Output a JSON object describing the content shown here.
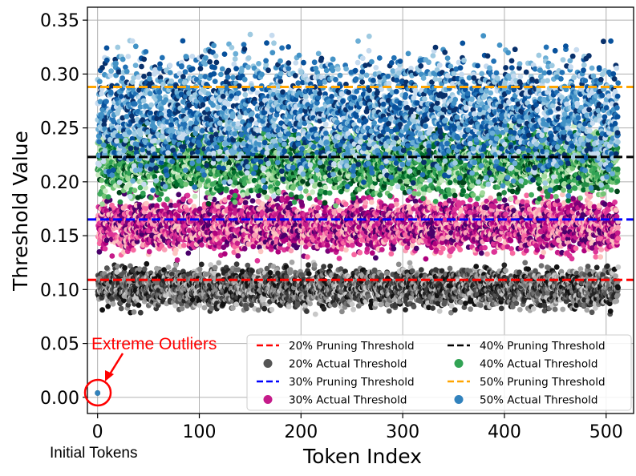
{
  "chart_data": {
    "type": "scatter",
    "xlabel": "Token Index",
    "ylabel": "Threshold Value",
    "xlim": [
      -10,
      527
    ],
    "ylim": [
      -0.015,
      0.362
    ],
    "xticks": [
      0,
      100,
      200,
      300,
      400,
      500
    ],
    "yticks": [
      0.0,
      0.05,
      0.1,
      0.15,
      0.2,
      0.25,
      0.3,
      0.35
    ],
    "ytick_labels": [
      "0.00",
      "0.05",
      "0.10",
      "0.15",
      "0.20",
      "0.25",
      "0.30",
      "0.35"
    ],
    "grid": true,
    "legend_position": "lower-right",
    "token_range": [
      0,
      511
    ],
    "pruning_thresholds": [
      {
        "name": "20% Pruning Threshold",
        "value": 0.109,
        "color": "#ff0000"
      },
      {
        "name": "30% Pruning Threshold",
        "value": 0.165,
        "color": "#0000ff"
      },
      {
        "name": "40% Pruning Threshold",
        "value": 0.223,
        "color": "#000000"
      },
      {
        "name": "50% Pruning Threshold",
        "value": 0.288,
        "color": "#ffa500"
      }
    ],
    "actual_thresholds": [
      {
        "name": "20% Actual Threshold",
        "legend_color": "#555555",
        "range": [
          0.075,
          0.128
        ],
        "colors": [
          "#111111",
          "#252525",
          "#3a3a3a",
          "#555555",
          "#707070",
          "#8a8a8a",
          "#a5a5a5",
          "#c8c8c8"
        ]
      },
      {
        "name": "30% Actual Threshold",
        "legend_color": "#c51b8a",
        "range": [
          0.125,
          0.195
        ],
        "colors": [
          "#49006a",
          "#7a0177",
          "#ae017e",
          "#c51b8a",
          "#dd3497",
          "#f768a1",
          "#fa9fb5",
          "#fcc5c0"
        ]
      },
      {
        "name": "40% Actual Threshold",
        "legend_color": "#31a354",
        "range": [
          0.175,
          0.262
        ],
        "colors": [
          "#00441b",
          "#006d2c",
          "#238b45",
          "#31a354",
          "#41ab5d",
          "#74c476",
          "#a1d99b",
          "#c7e9c0"
        ]
      },
      {
        "name": "50% Actual Threshold",
        "legend_color": "#3182bd",
        "range": [
          0.18,
          0.345
        ],
        "colors": [
          "#08306b",
          "#08519c",
          "#2171b5",
          "#4292c6",
          "#6baed6",
          "#9ecae1",
          "#c6dbef"
        ]
      }
    ],
    "initial_token_value": 0.004
  },
  "annotations": {
    "outliers_label": "Extreme Outliers",
    "outliers_color": "#ff0000",
    "initial_tokens_label": "Initial Tokens"
  }
}
